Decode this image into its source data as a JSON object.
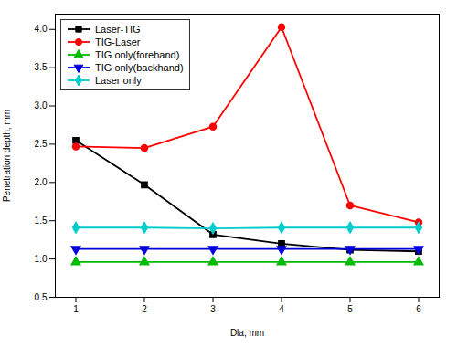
{
  "chart_data": {
    "type": "line",
    "x_label": "Dla, mm",
    "y_label": "Penetration depth, mm",
    "x": [
      1,
      2,
      3,
      4,
      5,
      6
    ],
    "series": [
      {
        "name": "Laser-TIG",
        "color": "#000000",
        "marker": "square",
        "values": [
          2.55,
          1.97,
          1.32,
          1.2,
          1.12,
          1.1
        ]
      },
      {
        "name": "TIG-Laser",
        "color": "#ff0000",
        "marker": "circle",
        "values": [
          2.47,
          2.45,
          2.73,
          4.03,
          1.7,
          1.48
        ]
      },
      {
        "name": "TIG only(forehand)",
        "color": "#00bb00",
        "marker": "triangle-up",
        "values": [
          0.96,
          0.96,
          0.96,
          0.96,
          0.96,
          0.96
        ]
      },
      {
        "name": "TIG only(backhand)",
        "color": "#0000dd",
        "marker": "triangle-down",
        "values": [
          1.13,
          1.13,
          1.13,
          1.13,
          1.13,
          1.13
        ]
      },
      {
        "name": "Laser only",
        "color": "#00cccc",
        "marker": "diamond",
        "values": [
          1.41,
          1.41,
          1.4,
          1.41,
          1.41,
          1.41
        ]
      }
    ],
    "xlim": [
      0.7,
      6.3
    ],
    "xticks": [
      1,
      2,
      3,
      4,
      5,
      6
    ],
    "ylim": [
      0.5,
      4.2
    ],
    "yticks": [
      0.5,
      {
        "value": 1,
        "label": "1.0"
      },
      1.5,
      {
        "value": 2,
        "label": "2.0"
      },
      2.5,
      {
        "value": 3,
        "label": "3.0"
      },
      3.5,
      {
        "value": 4,
        "label": "4.0"
      }
    ],
    "legend": "upper left",
    "grid": false
  }
}
